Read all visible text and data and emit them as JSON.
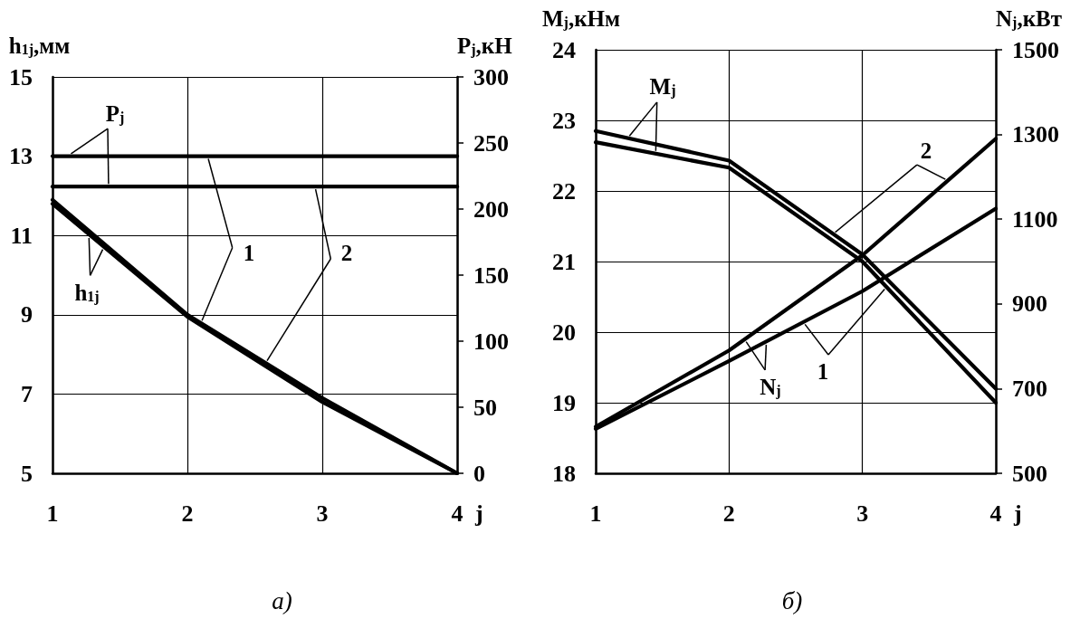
{
  "chart_data": [
    {
      "type": "line",
      "xlabel": "j",
      "ylabel": "h$_{1j}$,мм",
      "y2label": "P$_{j}$,кН",
      "x": [
        1,
        2,
        3,
        4
      ],
      "series": [
        {
          "color": "#000000",
          "values": [
            11.9,
            9.0,
            6.9,
            5.0
          ]
        },
        {
          "color": "#000000",
          "values": [
            11.8,
            8.95,
            6.8,
            5.0
          ]
        },
        {
          "color": "#000000",
          "values": [
            240,
            240,
            240,
            240
          ],
          "axis": "y2"
        },
        {
          "color": "#000000",
          "values": [
            217,
            217,
            217,
            217
          ],
          "axis": "y2"
        }
      ],
      "xlim": [
        1,
        4
      ],
      "xticks": [
        1,
        2,
        3,
        4
      ],
      "ylim": [
        5,
        15
      ],
      "yticks": [
        5,
        7,
        9,
        11,
        13,
        15
      ],
      "y2lim": [
        0,
        300
      ],
      "y2ticks": [
        0,
        50,
        100,
        150,
        200,
        250,
        300
      ],
      "grid": true,
      "marker": "none",
      "line_style": "solid",
      "annotations": [
        {
          "text": "P$_{j}$",
          "x": 1.11,
          "y": 13.0
        },
        {
          "text": "h$_{1j}$",
          "x": 1.27,
          "y": 11.03
        },
        {
          "text": "1",
          "x": 2.1,
          "y": 8.79
        },
        {
          "text": "2",
          "x": 2.58,
          "y": 7.78
        },
        "а)"
      ]
    },
    {
      "type": "line",
      "xlabel": "j",
      "ylabel": "M$_{j}$,кНм",
      "y2label": "N$_{j}$,кВт",
      "x": [
        1,
        2,
        3,
        4
      ],
      "series": [
        {
          "color": "#000000",
          "values": [
            22.85,
            22.43,
            21.1,
            19.2
          ]
        },
        {
          "color": "#000000",
          "values": [
            22.69,
            22.33,
            21.0,
            19.0
          ]
        },
        {
          "color": "#000000",
          "values": [
            610,
            790,
            1015,
            1290
          ],
          "axis": "y2"
        },
        {
          "color": "#000000",
          "values": [
            605,
            765,
            930,
            1125
          ],
          "axis": "y2"
        }
      ],
      "xlim": [
        1,
        4
      ],
      "xticks": [
        1,
        2,
        3,
        4
      ],
      "ylim": [
        18,
        24
      ],
      "yticks": [
        18,
        19,
        20,
        21,
        22,
        23,
        24
      ],
      "y2lim": [
        500,
        1500
      ],
      "y2ticks": [
        500,
        700,
        900,
        1100,
        1300,
        1500
      ],
      "grid": true,
      "marker": "none",
      "line_style": "solid",
      "annotations": [
        {
          "text": "M$_{j}$",
          "x": 1.24,
          "y": 22.75
        },
        {
          "text": "N$_{j}$",
          "x": 2.115,
          "y": 19.9
        },
        {
          "text": "1",
          "x": 3.18,
          "y": 20.64
        },
        {
          "text": "2",
          "x": 2.78,
          "y": 21.39
        },
        "б)"
      ]
    }
  ]
}
